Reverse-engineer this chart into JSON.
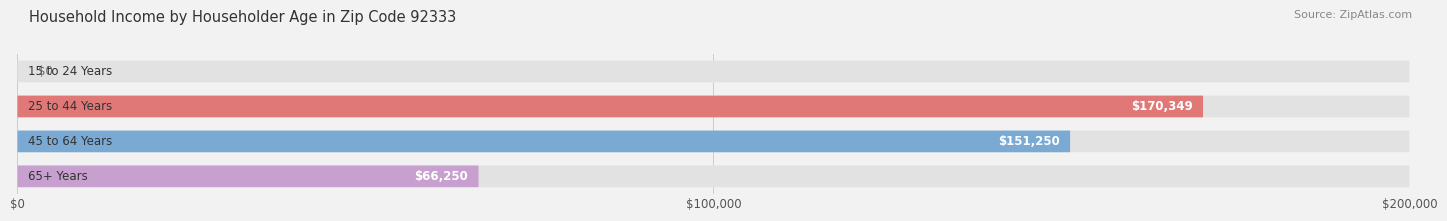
{
  "title": "Household Income by Householder Age in Zip Code 92333",
  "source": "Source: ZipAtlas.com",
  "categories": [
    "15 to 24 Years",
    "25 to 44 Years",
    "45 to 64 Years",
    "65+ Years"
  ],
  "values": [
    0,
    170349,
    151250,
    66250
  ],
  "bar_colors": [
    "#f5cfa0",
    "#e07878",
    "#7aaad4",
    "#c8a0d0"
  ],
  "label_texts": [
    "$0",
    "$170,349",
    "$151,250",
    "$66,250"
  ],
  "xlim": [
    0,
    200000
  ],
  "xtick_values": [
    0,
    100000,
    200000
  ],
  "xtick_labels": [
    "$0",
    "$100,000",
    "$200,000"
  ],
  "background_color": "#f2f2f2",
  "bar_bg_color": "#e2e2e2",
  "title_fontsize": 10.5,
  "source_fontsize": 8,
  "label_fontsize": 8.5,
  "tick_fontsize": 8.5,
  "cat_fontsize": 8.5
}
